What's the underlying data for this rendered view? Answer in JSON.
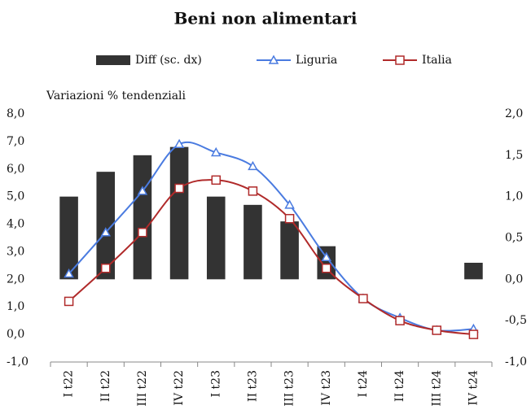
{
  "chart_data": {
    "type": "bar_line",
    "title": "Beni non alimentari",
    "ylabel": "Variazioni % tendenziali",
    "categories": [
      "I t22",
      "II t22",
      "III t22",
      "IV t22",
      "I t23",
      "II t23",
      "III t23",
      "IV t23",
      "I t24",
      "II t24",
      "III t24",
      "IV t24"
    ],
    "series": [
      {
        "name": "Diff (sc. dx)",
        "type": "bar",
        "axis": "y2",
        "color": "#333333",
        "values": [
          1.0,
          1.3,
          1.5,
          1.6,
          1.0,
          0.9,
          0.7,
          0.4,
          0,
          0,
          0,
          0.2
        ]
      },
      {
        "name": "Liguria",
        "type": "line",
        "marker": "triangle",
        "color": "#4a7be0",
        "values": [
          2.2,
          3.7,
          5.2,
          6.9,
          6.6,
          6.1,
          4.7,
          2.8,
          1.3,
          0.6,
          0.15,
          0.2
        ]
      },
      {
        "name": "Italia",
        "type": "line",
        "marker": "square",
        "color": "#b02a2a",
        "values": [
          1.2,
          2.4,
          3.7,
          5.3,
          5.6,
          5.2,
          4.2,
          2.4,
          1.3,
          0.5,
          0.15,
          0.0
        ]
      }
    ],
    "ylim": [
      -1,
      8
    ],
    "yticks": [
      {
        "value": -1,
        "label": "-1,0"
      },
      {
        "value": 0,
        "label": "0,0"
      },
      {
        "value": 1,
        "label": "1,0"
      },
      {
        "value": 2,
        "label": "2,0"
      },
      {
        "value": 3,
        "label": "3,0"
      },
      {
        "value": 4,
        "label": "4,0"
      },
      {
        "value": 5,
        "label": "5,0"
      },
      {
        "value": 6,
        "label": "6,0"
      },
      {
        "value": 7,
        "label": "7,0"
      },
      {
        "value": 8,
        "label": "8,0"
      }
    ],
    "y2lim": [
      -1,
      2
    ],
    "y2ticks": [
      {
        "value": -1,
        "label": "-1,0"
      },
      {
        "value": -0.5,
        "label": "-0,5"
      },
      {
        "value": 0,
        "label": "0,0"
      },
      {
        "value": 0.5,
        "label": "0,5"
      },
      {
        "value": 1,
        "label": "1,0"
      },
      {
        "value": 1.5,
        "label": "1,5"
      },
      {
        "value": 2,
        "label": "2,0"
      }
    ],
    "legend": "top"
  }
}
